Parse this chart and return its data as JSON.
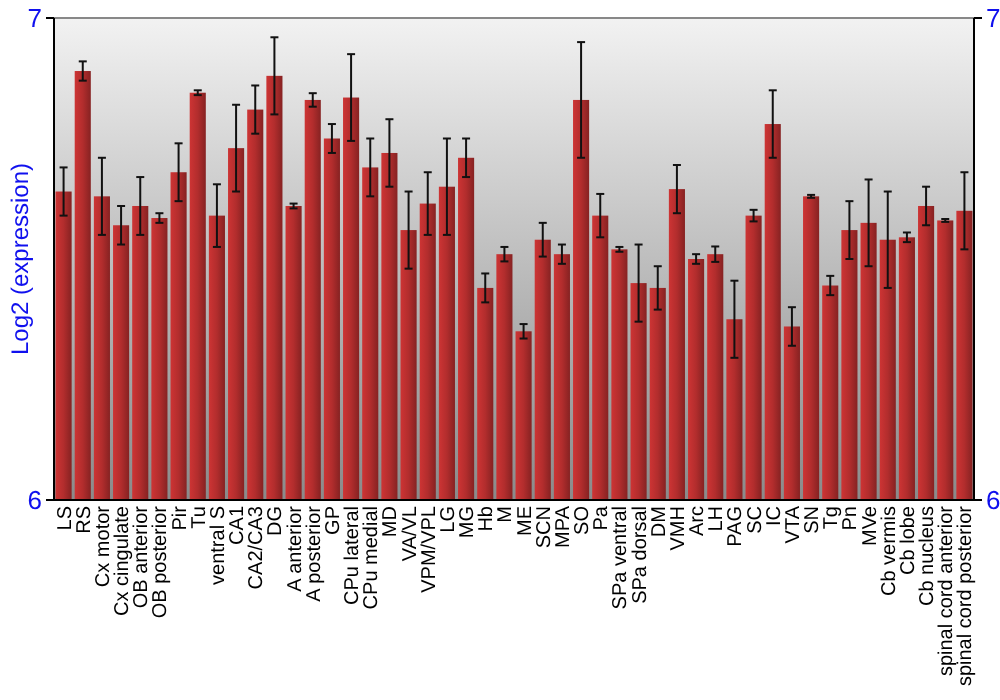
{
  "chart_data": {
    "type": "bar",
    "ylabel": "Log2 (expression)",
    "categories": [
      "LS",
      "RS",
      "Cx motor",
      "Cx cingulate",
      "OB anterior",
      "OB posterior",
      "Pir",
      "Tu",
      "ventral S",
      "CA1",
      "CA2/CA3",
      "DG",
      "A anterior",
      "A posterior",
      "GP",
      "CPu lateral",
      "CPu medial",
      "MD",
      "VA/VL",
      "VPM/VPL",
      "LG",
      "MG",
      "Hb",
      "M",
      "ME",
      "SCN",
      "MPA",
      "SO",
      "Pa",
      "SPa ventral",
      "SPa dorsal",
      "DM",
      "VMH",
      "Arc",
      "LH",
      "PAG",
      "SC",
      "IC",
      "VTA",
      "SN",
      "Tg",
      "Pn",
      "MVe",
      "Cb vermis",
      "Cb lobe",
      "Cb nucleus",
      "spinal cord anterior",
      "spinal cord posterior"
    ],
    "values": [
      6.64,
      6.89,
      6.63,
      6.57,
      6.61,
      6.585,
      6.68,
      6.845,
      6.59,
      6.73,
      6.81,
      6.88,
      6.61,
      6.83,
      6.75,
      6.835,
      6.69,
      6.72,
      6.56,
      6.615,
      6.65,
      6.71,
      6.44,
      6.51,
      6.35,
      6.54,
      6.51,
      6.83,
      6.59,
      6.52,
      6.45,
      6.44,
      6.645,
      6.5,
      6.51,
      6.375,
      6.59,
      6.78,
      6.36,
      6.63,
      6.445,
      6.56,
      6.575,
      6.54,
      6.545,
      6.61,
      6.58,
      6.6
    ],
    "errors": [
      0.05,
      0.02,
      0.08,
      0.04,
      0.06,
      0.01,
      0.06,
      0.005,
      0.065,
      0.09,
      0.05,
      0.08,
      0.005,
      0.014,
      0.03,
      0.09,
      0.06,
      0.07,
      0.08,
      0.065,
      0.1,
      0.04,
      0.03,
      0.015,
      0.015,
      0.035,
      0.02,
      0.12,
      0.045,
      0.005,
      0.08,
      0.045,
      0.05,
      0.01,
      0.016,
      0.08,
      0.012,
      0.07,
      0.04,
      0.003,
      0.02,
      0.06,
      0.09,
      0.1,
      0.01,
      0.04,
      0.003,
      0.08
    ],
    "color": "#b22d2d",
    "ylim": [
      6,
      7
    ],
    "yticks": [
      6,
      7
    ],
    "y2lim": [
      6,
      7
    ],
    "y2ticks": [
      6,
      7
    ],
    "grid": false
  }
}
